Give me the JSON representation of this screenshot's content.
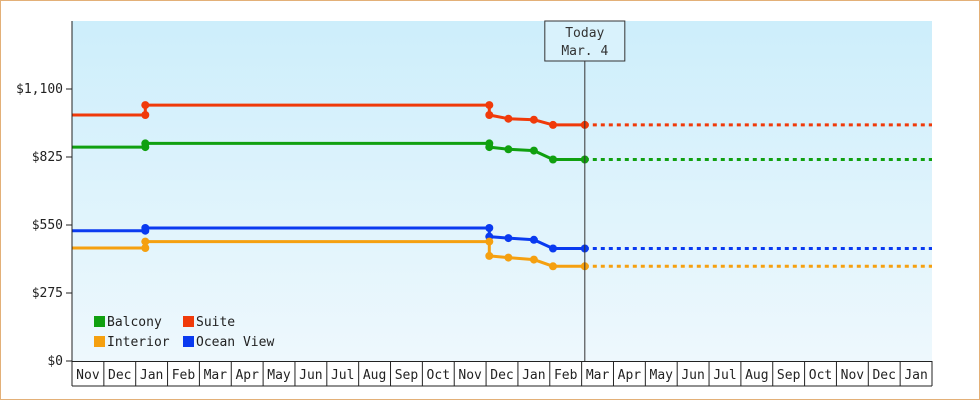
{
  "chart_data": {
    "type": "line",
    "step": true,
    "y_unit_prefix": "$",
    "ylim": [
      0,
      1375
    ],
    "y_ticks": [
      0,
      275,
      550,
      825,
      1100
    ],
    "y_tick_labels": [
      "$0",
      "$275",
      "$550",
      "$825",
      "$1,100"
    ],
    "x_ticks": [
      "Nov",
      "Dec",
      "Jan",
      "Feb",
      "Mar",
      "Apr",
      "May",
      "Jun",
      "Jul",
      "Aug",
      "Sep",
      "Oct",
      "Nov",
      "Dec",
      "Jan",
      "Feb",
      "Mar",
      "Apr",
      "May",
      "Jun",
      "Jul",
      "Aug",
      "Sep",
      "Oct",
      "Nov",
      "Dec",
      "Jan"
    ],
    "x_range": [
      0,
      27
    ],
    "today": {
      "line1": "Today",
      "line2": "Mar. 4",
      "x": 16.1
    },
    "grid": false,
    "background": [
      "#cdeefb",
      "#eef8fd"
    ],
    "legend_position": "bottom-left",
    "series": [
      {
        "name": "Suite",
        "color": "#f03a0a",
        "points": [
          [
            0,
            995
          ],
          [
            2.3,
            995
          ],
          [
            2.3,
            1035
          ],
          [
            13.1,
            1035
          ],
          [
            13.1,
            995
          ],
          [
            13.7,
            980
          ],
          [
            14.5,
            976
          ],
          [
            15.1,
            955
          ],
          [
            16.1,
            955
          ]
        ],
        "projection": [
          [
            16.1,
            955
          ],
          [
            27,
            955
          ]
        ]
      },
      {
        "name": "Balcony",
        "color": "#10a010",
        "points": [
          [
            0,
            865
          ],
          [
            2.3,
            865
          ],
          [
            2.3,
            880
          ],
          [
            13.1,
            880
          ],
          [
            13.1,
            865
          ],
          [
            13.7,
            856
          ],
          [
            14.5,
            851
          ],
          [
            15.1,
            815
          ],
          [
            16.1,
            815
          ]
        ],
        "projection": [
          [
            16.1,
            815
          ],
          [
            27,
            815
          ]
        ]
      },
      {
        "name": "Ocean View",
        "color": "#0a3af0",
        "points": [
          [
            0,
            527
          ],
          [
            2.3,
            527
          ],
          [
            2.3,
            538
          ],
          [
            13.1,
            538
          ],
          [
            13.1,
            503
          ],
          [
            13.7,
            497
          ],
          [
            14.5,
            490
          ],
          [
            15.1,
            455
          ],
          [
            16.1,
            455
          ]
        ],
        "projection": [
          [
            16.1,
            455
          ],
          [
            27,
            455
          ]
        ]
      },
      {
        "name": "Interior",
        "color": "#f5a010",
        "points": [
          [
            0,
            457
          ],
          [
            2.3,
            457
          ],
          [
            2.3,
            483
          ],
          [
            13.1,
            483
          ],
          [
            13.1,
            425
          ],
          [
            13.7,
            418
          ],
          [
            14.5,
            410
          ],
          [
            15.1,
            383
          ],
          [
            16.1,
            383
          ]
        ],
        "projection": [
          [
            16.1,
            383
          ],
          [
            27,
            383
          ]
        ]
      }
    ],
    "legend": [
      {
        "name": "Balcony",
        "color": "#10a010"
      },
      {
        "name": "Suite",
        "color": "#f03a0a"
      },
      {
        "name": "Interior",
        "color": "#f5a010"
      },
      {
        "name": "Ocean View",
        "color": "#0a3af0"
      }
    ]
  }
}
